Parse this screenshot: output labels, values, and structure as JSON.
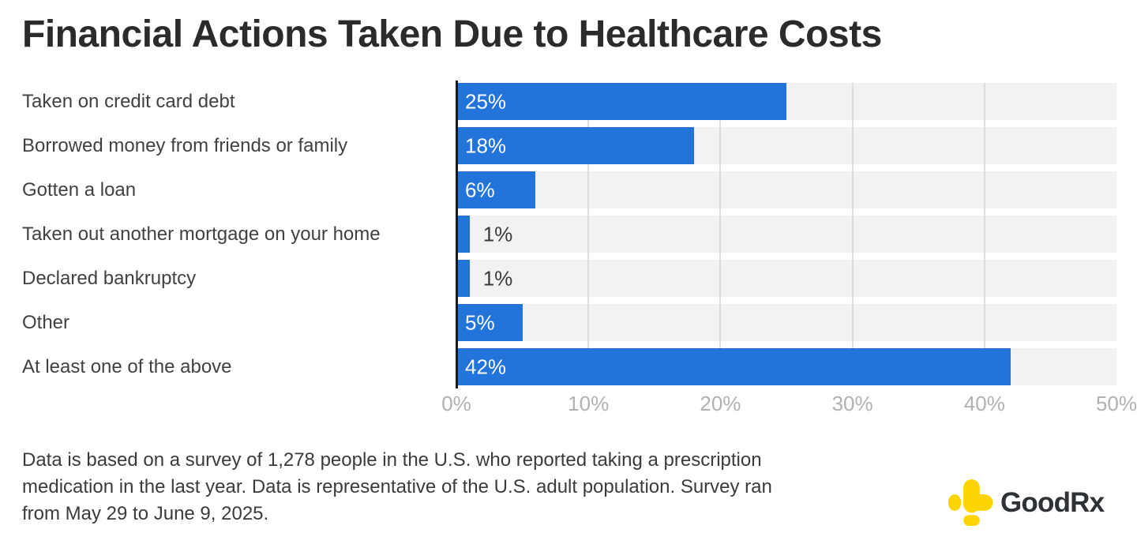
{
  "title": "Financial Actions Taken Due to Healthcare Costs",
  "chart_data": {
    "type": "bar",
    "orientation": "horizontal",
    "title": "Financial Actions Taken Due to Healthcare Costs",
    "categories": [
      "Taken on credit card debt",
      "Borrowed money from friends or family",
      "Gotten a loan",
      "Taken out another mortgage on your home",
      "Declared bankruptcy",
      "Other",
      "At least one of the above"
    ],
    "values": [
      25,
      18,
      6,
      1,
      1,
      5,
      42
    ],
    "value_labels": [
      "25%",
      "18%",
      "6%",
      "1%",
      "1%",
      "5%",
      "42%"
    ],
    "xlim": [
      0,
      50
    ],
    "x_ticks": [
      "0%",
      "10%",
      "20%",
      "30%",
      "40%",
      "50%"
    ],
    "grid": true,
    "legend": false,
    "bar_color": "#2274da",
    "band_color": "#f2f2f3",
    "inside_label_min_value": 5
  },
  "footnote": {
    "lines": [
      "Data is based on a survey of 1,278 people in the U.S. who reported taking a prescription",
      "medication in the last year. Data is representative of the U.S. adult population. Survey ran",
      "from May 29 to June 9, 2025."
    ]
  },
  "logo": {
    "text": "GoodRx",
    "icon_color": "#ffd400",
    "text_color": "#2e3237"
  }
}
